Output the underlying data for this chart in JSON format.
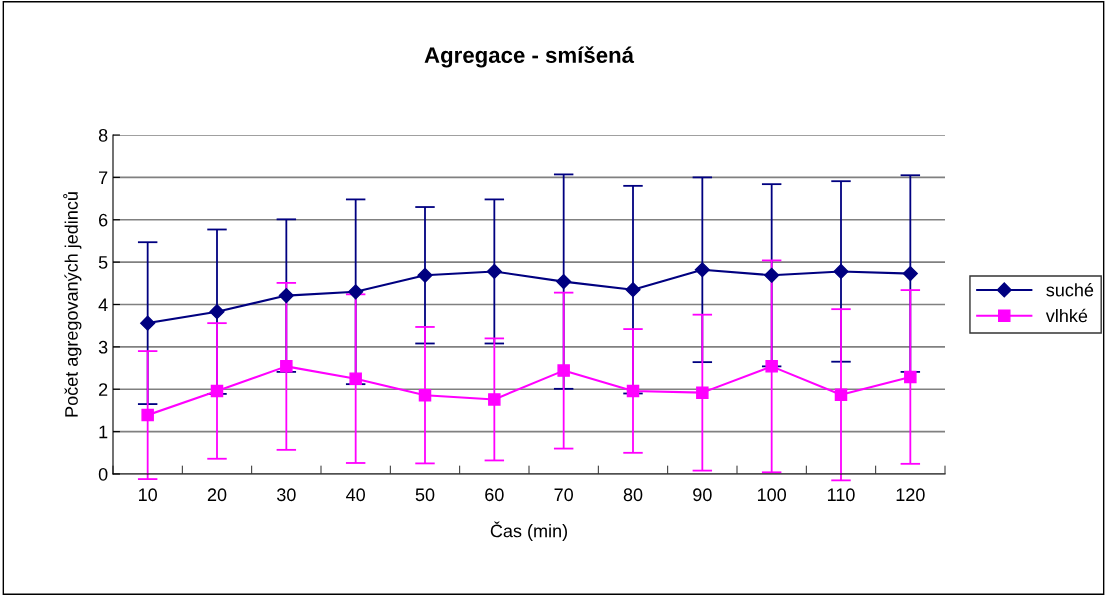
{
  "chart_data": {
    "type": "line",
    "title": "Agregace - smíšená",
    "xlabel": "Čas (min)",
    "ylabel": "Počet agregovaných jedinců",
    "categories": [
      "10",
      "20",
      "30",
      "40",
      "50",
      "60",
      "70",
      "80",
      "90",
      "100",
      "110",
      "120"
    ],
    "series": [
      {
        "name": "suché",
        "color": "#000080",
        "marker": "diamond",
        "values": [
          3.56,
          3.83,
          4.21,
          4.3,
          4.69,
          4.78,
          4.54,
          4.35,
          4.82,
          4.69,
          4.78,
          4.73
        ],
        "errors": [
          1.91,
          1.94,
          1.8,
          2.18,
          1.61,
          1.7,
          2.53,
          2.45,
          2.18,
          2.15,
          2.13,
          2.32
        ]
      },
      {
        "name": "vlhké",
        "color": "#ff00ff",
        "marker": "square",
        "values": [
          1.39,
          1.96,
          2.54,
          2.25,
          1.86,
          1.76,
          2.44,
          1.96,
          1.92,
          2.54,
          1.87,
          2.29
        ],
        "errors": [
          1.51,
          1.6,
          1.97,
          1.99,
          1.61,
          1.44,
          1.84,
          1.46,
          1.84,
          2.5,
          2.02,
          2.05
        ]
      }
    ],
    "ylim": [
      0,
      8
    ],
    "yticks": [
      0,
      1,
      2,
      3,
      4,
      5,
      6,
      7,
      8
    ],
    "grid": "y",
    "legend": "right",
    "line_style": "solid"
  }
}
